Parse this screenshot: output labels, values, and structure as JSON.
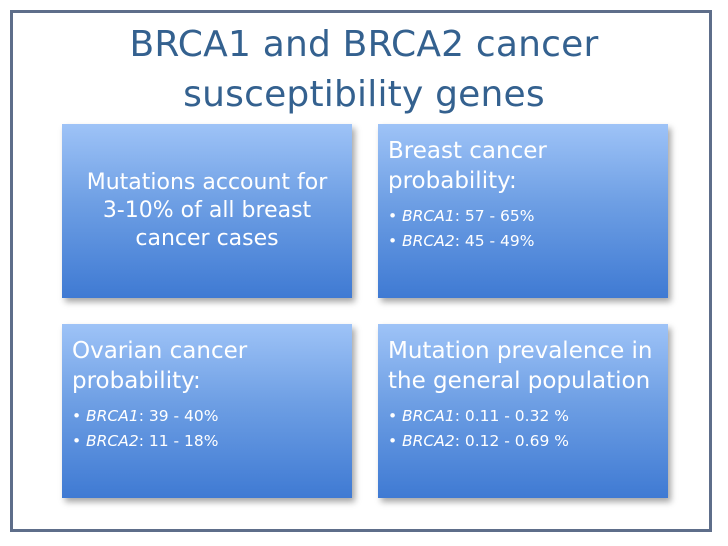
{
  "title": "BRCA1 and BRCA2 cancer susceptibility genes",
  "colors": {
    "title": "#34618f",
    "box_top": "#9ec3f7",
    "box_bottom": "#3f7ad3",
    "frame": "#5e6e8a"
  },
  "boxes": [
    {
      "text": "Mutations account for 3-10% of all breast cancer cases"
    },
    {
      "heading": "Breast cancer probability:",
      "items": [
        {
          "gene": "BRCA1",
          "value": ": 57 - 65%"
        },
        {
          "gene": "BRCA2",
          "value": ": 45 - 49%"
        }
      ]
    },
    {
      "heading": "Ovarian cancer probability:",
      "items": [
        {
          "gene": "BRCA1",
          "value": ": 39 - 40%"
        },
        {
          "gene": "BRCA2",
          "value": ": 11 - 18%"
        }
      ]
    },
    {
      "heading": "Mutation prevalence in the general population",
      "items": [
        {
          "gene": "BRCA1",
          "value": ": 0.11 - 0.32 %"
        },
        {
          "gene": "BRCA2",
          "value": ": 0.12 - 0.69 %"
        }
      ]
    }
  ]
}
